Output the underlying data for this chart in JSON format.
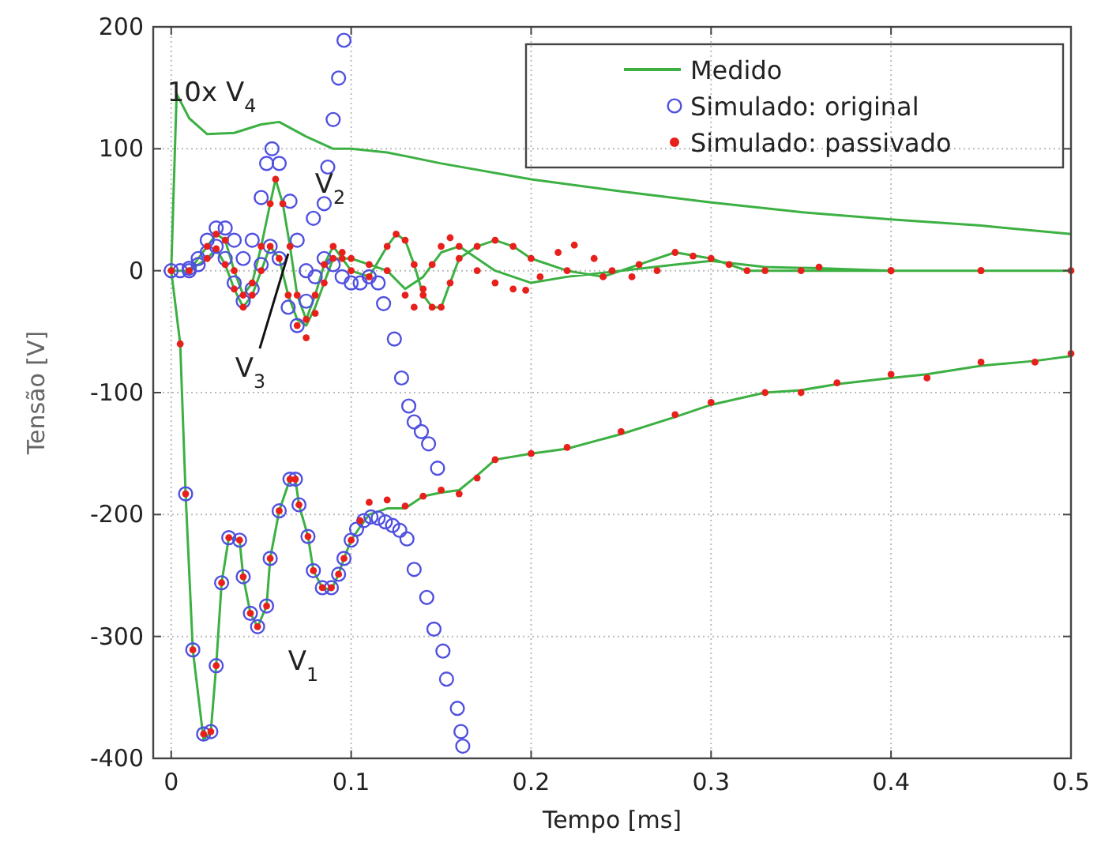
{
  "chart_data": {
    "type": "line",
    "xlabel": "Tempo [ms]",
    "ylabel": "Tensão [V]",
    "xlim": [
      -0.01,
      0.5
    ],
    "xticks": [
      0,
      0.1,
      0.2,
      0.3,
      0.4,
      0.5
    ],
    "ylim": [
      -400,
      200
    ],
    "yticks": [
      -400,
      -300,
      -200,
      -100,
      0,
      100,
      200
    ],
    "grid": true,
    "legend": "top right",
    "annotations": [
      "10x V$_{4}$",
      "V$_{2}$",
      {
        "text": "V$_{3}$",
        "x": 0.065,
        "y": 14
      },
      "V$_{1}$"
    ],
    "series": [
      {
        "name": "Medido",
        "color": "#3cb043",
        "x": [
          0,
          0.003,
          0.01,
          0.02,
          0.035,
          0.05,
          0.06,
          0.075,
          0.09,
          0.1,
          0.12,
          0.15,
          0.2,
          0.25,
          0.3,
          0.35,
          0.4,
          0.45,
          0.5,
          null,
          0,
          0.005,
          0.008,
          0.012,
          0.018,
          0.022,
          0.025,
          0.028,
          0.032,
          0.038,
          0.04,
          0.044,
          0.048,
          0.053,
          0.055,
          0.06,
          0.066,
          0.069,
          0.071,
          0.076,
          0.079,
          0.084,
          0.089,
          0.093,
          0.096,
          0.1,
          0.105,
          0.11,
          0.12,
          0.13,
          0.14,
          0.15,
          0.16,
          0.17,
          0.18,
          0.2,
          0.22,
          0.25,
          0.28,
          0.3,
          0.33,
          0.35,
          0.37,
          0.4,
          0.42,
          0.45,
          0.48,
          0.5,
          null,
          0,
          0.01,
          0.02,
          0.025,
          0.03,
          0.035,
          0.04,
          0.045,
          0.05,
          0.055,
          0.058,
          0.062,
          0.066,
          0.07,
          0.075,
          0.08,
          0.085,
          0.09,
          0.095,
          0.1,
          0.11,
          0.12,
          0.125,
          0.13,
          0.135,
          0.14,
          0.145,
          0.15,
          0.155,
          0.16,
          0.17,
          0.18,
          0.19,
          0.2,
          0.22,
          0.24,
          0.26,
          0.28,
          0.3,
          0.32,
          0.35,
          0.4,
          0.45,
          0.5,
          null,
          0,
          0.01,
          0.02,
          0.025,
          0.03,
          0.035,
          0.04,
          0.045,
          0.05,
          0.055,
          0.06,
          0.065,
          0.07,
          0.075,
          0.08,
          0.085,
          0.09,
          0.1,
          0.11,
          0.12,
          0.13,
          0.14,
          0.15,
          0.16,
          0.17,
          0.18,
          0.2,
          0.22,
          0.25,
          0.28,
          0.3,
          0.33,
          0.36,
          0.4,
          0.45,
          0.5
        ],
        "values": [
          0,
          145,
          125,
          112,
          113,
          120,
          122,
          110,
          100,
          100,
          97,
          88,
          75,
          65,
          56,
          48,
          42,
          37,
          30,
          null,
          0,
          -60,
          -183,
          -311,
          -385,
          -378,
          -324,
          -256,
          -219,
          -221,
          -251,
          -281,
          -292,
          -275,
          -236,
          -197,
          -171,
          -171,
          -192,
          -218,
          -246,
          -260,
          -262,
          -249,
          -236,
          -221,
          -210,
          -200,
          -195,
          -195,
          -185,
          -182,
          -180,
          -168,
          -155,
          -150,
          -146,
          -134,
          -120,
          -110,
          -100,
          -98,
          -93,
          -88,
          -85,
          -78,
          -74,
          -70,
          null,
          0,
          0,
          20,
          30,
          25,
          0,
          -20,
          -10,
          20,
          55,
          75,
          55,
          20,
          -20,
          -40,
          -20,
          5,
          20,
          10,
          0,
          -5,
          20,
          30,
          25,
          5,
          -20,
          -30,
          -30,
          -10,
          10,
          20,
          25,
          20,
          10,
          0,
          -5,
          5,
          15,
          10,
          0,
          0,
          0,
          0,
          0,
          null,
          0,
          0,
          10,
          18,
          5,
          -15,
          -30,
          -20,
          0,
          20,
          10,
          -20,
          -40,
          -45,
          -30,
          -10,
          10,
          10,
          5,
          0,
          -15,
          -5,
          15,
          20,
          10,
          0,
          -10,
          -5,
          0,
          5,
          8,
          3,
          2,
          0,
          0,
          0
        ]
      },
      {
        "name": "Simulado: original",
        "type": "scatter",
        "marker": "circle",
        "color": "#5050e0",
        "x": [
          0.008,
          0.012,
          0.018,
          0.022,
          0.025,
          0.028,
          0.032,
          0.038,
          0.04,
          0.044,
          0.048,
          0.053,
          0.055,
          0.06,
          0.066,
          0.069,
          0.071,
          0.076,
          0.079,
          0.084,
          0.089,
          0.093,
          0.096,
          0.1,
          0.103,
          0.107,
          0.111,
          0.115,
          0.119,
          0.123,
          0.127,
          0.131,
          0.135,
          0.142,
          0.146,
          0.151,
          0.153,
          0.159,
          0.161,
          0.162,
          0,
          0.005,
          0.01,
          0.015,
          0.02,
          0.025,
          0.03,
          0.035,
          0.04,
          0.045,
          0.05,
          0.053,
          0.056,
          0.06,
          0.066,
          0.07,
          0.075,
          0.079,
          0.085,
          0.087,
          0.09,
          0.093,
          0.096,
          0.01,
          0.015,
          0.02,
          0.025,
          0.03,
          0.035,
          0.04,
          0.045,
          0.05,
          0.055,
          0.06,
          0.065,
          0.07,
          0.075,
          0.08,
          0.085,
          0.09,
          0.095,
          0.1,
          0.105,
          0.11,
          0.115,
          0.118,
          0.124,
          0.128,
          0.132,
          0.135,
          0.139,
          0.143,
          0.148
        ],
        "values": [
          -183,
          -311,
          -380,
          -378,
          -324,
          -256,
          -219,
          -221,
          -251,
          -281,
          -292,
          -275,
          -236,
          -197,
          -171,
          -171,
          -192,
          -218,
          -246,
          -260,
          -260,
          -249,
          -236,
          -221,
          -212,
          -205,
          -202,
          -203,
          -206,
          -209,
          -213,
          -220,
          -245,
          -268,
          -294,
          -312,
          -335,
          -359,
          -378,
          -390,
          0,
          0,
          2,
          10,
          25,
          35,
          35,
          25,
          10,
          25,
          60,
          88,
          100,
          88,
          57,
          25,
          0,
          43,
          55,
          85,
          124,
          158,
          189,
          0,
          5,
          15,
          20,
          10,
          -10,
          -25,
          -15,
          5,
          20,
          10,
          -30,
          -45,
          -25,
          -5,
          10,
          5,
          -5,
          -10,
          -10,
          -5,
          -10,
          -27,
          -56,
          -88,
          -111,
          -124,
          -132,
          -142,
          -162
        ]
      },
      {
        "name": "Simulado: passivado",
        "type": "scatter",
        "marker": "dot",
        "color": "#e8201c",
        "x": [
          0,
          0.005,
          0.008,
          0.012,
          0.018,
          0.022,
          0.025,
          0.028,
          0.032,
          0.038,
          0.04,
          0.044,
          0.048,
          0.053,
          0.055,
          0.06,
          0.066,
          0.069,
          0.071,
          0.076,
          0.079,
          0.084,
          0.089,
          0.093,
          0.096,
          0.1,
          0.105,
          0.11,
          0.12,
          0.13,
          0.14,
          0.15,
          0.16,
          0.17,
          0.18,
          0.2,
          0.22,
          0.25,
          0.28,
          0.3,
          0.33,
          0.35,
          0.37,
          0.4,
          0.42,
          0.45,
          0.48,
          0.5,
          0.02,
          0.025,
          0.03,
          0.035,
          0.04,
          0.045,
          0.05,
          0.055,
          0.058,
          0.062,
          0.066,
          0.07,
          0.075,
          0.08,
          0.085,
          0.09,
          0.095,
          0.1,
          0.11,
          0.12,
          0.125,
          0.13,
          0.135,
          0.14,
          0.145,
          0.15,
          0.155,
          0.16,
          0.17,
          0.18,
          0.19,
          0.2,
          0.22,
          0.24,
          0.26,
          0.28,
          0.3,
          0.32,
          0.35,
          0.4,
          0.45,
          0.01,
          0.02,
          0.025,
          0.03,
          0.035,
          0.04,
          0.045,
          0.05,
          0.055,
          0.06,
          0.065,
          0.07,
          0.075,
          0.08,
          0.085,
          0.09,
          0.095,
          0.1,
          0.11,
          0.12,
          0.13,
          0.135,
          0.14,
          0.145,
          0.15,
          0.155,
          0.16,
          0.17,
          0.18,
          0.19,
          0.197,
          0.205,
          0.215,
          0.224,
          0.235,
          0.245,
          0.256,
          0.27,
          0.29,
          0.31,
          0.33,
          0.36,
          0.4,
          0.45,
          0.5
        ],
        "values": [
          0,
          -60,
          -183,
          -311,
          -380,
          -378,
          -324,
          -256,
          -219,
          -221,
          -251,
          -281,
          -292,
          -275,
          -236,
          -197,
          -171,
          -171,
          -192,
          -218,
          -246,
          -260,
          -260,
          -249,
          -236,
          -221,
          -205,
          -190,
          -188,
          -193,
          -185,
          -180,
          -183,
          -170,
          -155,
          -150,
          -145,
          -132,
          -118,
          -108,
          -100,
          -100,
          -92,
          -85,
          -88,
          -75,
          -75,
          -68,
          20,
          30,
          25,
          0,
          -20,
          -10,
          20,
          55,
          75,
          55,
          20,
          -20,
          -40,
          -20,
          5,
          20,
          10,
          0,
          -5,
          20,
          30,
          25,
          5,
          -20,
          -30,
          -30,
          -10,
          10,
          20,
          25,
          20,
          10,
          0,
          -5,
          5,
          15,
          10,
          0,
          0,
          0,
          0,
          0,
          10,
          18,
          5,
          -15,
          -30,
          -20,
          0,
          20,
          10,
          -20,
          -45,
          -55,
          -35,
          -10,
          10,
          15,
          10,
          5,
          0,
          -20,
          -30,
          -15,
          5,
          20,
          27,
          20,
          0,
          -10,
          -15,
          -16,
          -5,
          15,
          21,
          10,
          0,
          -5,
          0,
          12,
          5,
          0,
          3,
          0,
          0,
          0
        ]
      }
    ]
  }
}
